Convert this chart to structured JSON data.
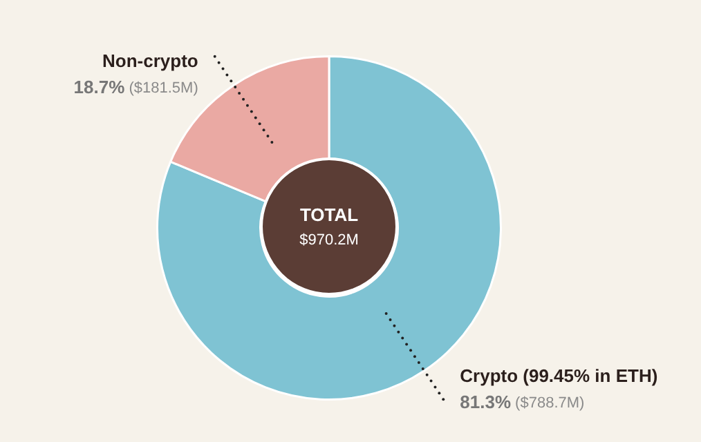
{
  "chart_data": {
    "type": "donut",
    "categories": [
      "Crypto (99.45% in ETH)",
      "Non-crypto"
    ],
    "values": [
      81.3,
      18.7
    ],
    "colors": [
      "#7fc3d3",
      "#eaa9a3"
    ],
    "value_labels": [
      "81.3% ($788.7M)",
      "18.7% ($181.5M)"
    ],
    "annotations": [
      "TOTAL",
      "$970.2M"
    ],
    "legend": false
  }
}
